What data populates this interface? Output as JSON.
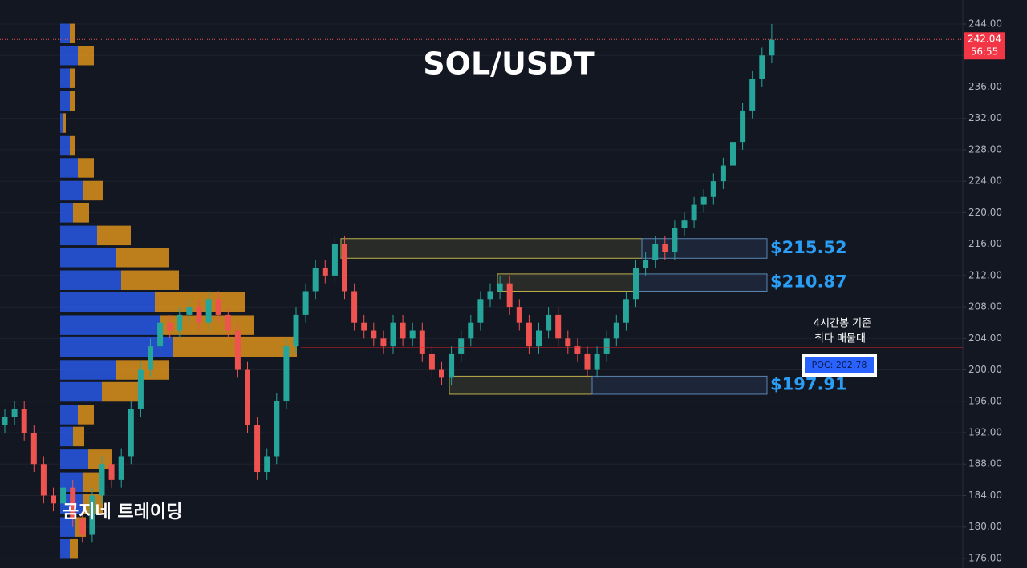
{
  "chart_data": {
    "type": "candlestick",
    "title": "SOL/USDT",
    "watermark": "곰지네 트레이딩",
    "open": [
      193,
      194,
      195,
      192,
      188,
      184,
      183,
      185,
      181,
      179,
      184,
      188,
      186,
      189,
      195,
      200,
      203,
      206,
      205,
      207,
      208,
      206,
      209,
      207,
      205,
      200,
      193,
      187,
      189,
      196,
      203,
      207,
      210,
      213,
      212,
      216,
      210,
      206,
      205,
      204,
      203,
      206,
      204,
      205,
      202,
      200,
      199,
      202,
      204,
      206,
      209,
      210,
      211,
      208,
      206,
      203,
      205,
      207,
      204,
      203,
      202,
      200,
      202,
      204,
      206,
      209,
      213,
      214,
      216,
      215,
      218,
      219,
      221,
      222,
      224,
      226,
      229,
      233,
      237,
      240
    ],
    "high": [
      195,
      196,
      196,
      193,
      189,
      185,
      186,
      186,
      182,
      185,
      189,
      189,
      190,
      196,
      201,
      204,
      207,
      207,
      208,
      209,
      209,
      210,
      210,
      208,
      206,
      201,
      194,
      190,
      197,
      204,
      208,
      211,
      214,
      214,
      217,
      217,
      211,
      207,
      206,
      205,
      207,
      207,
      206,
      206,
      203,
      201,
      203,
      205,
      207,
      210,
      211,
      212,
      212,
      209,
      207,
      206,
      208,
      208,
      205,
      204,
      203,
      203,
      205,
      207,
      210,
      214,
      215,
      217,
      217,
      219,
      220,
      222,
      223,
      225,
      227,
      230,
      234,
      238,
      241,
      244
    ],
    "low": [
      192,
      193,
      191,
      187,
      183,
      182,
      182,
      180,
      178,
      178,
      183,
      185,
      185,
      188,
      194,
      199,
      202,
      204,
      204,
      206,
      205,
      205,
      206,
      204,
      199,
      192,
      186,
      186,
      188,
      195,
      202,
      206,
      209,
      211,
      211,
      209,
      205,
      204,
      203,
      202,
      202,
      203,
      203,
      201,
      199,
      198,
      198,
      201,
      203,
      205,
      208,
      209,
      207,
      205,
      202,
      202,
      204,
      203,
      202,
      201,
      199,
      199,
      201,
      203,
      205,
      208,
      212,
      213,
      214,
      214,
      217,
      218,
      220,
      221,
      223,
      225,
      228,
      232,
      236,
      239
    ],
    "close": [
      194,
      195,
      192,
      188,
      184,
      183,
      185,
      181,
      179,
      184,
      188,
      186,
      189,
      195,
      200,
      203,
      206,
      205,
      207,
      208,
      206,
      209,
      207,
      205,
      200,
      193,
      187,
      189,
      196,
      203,
      207,
      210,
      213,
      212,
      216,
      210,
      206,
      205,
      204,
      203,
      206,
      204,
      205,
      202,
      200,
      199,
      202,
      204,
      206,
      209,
      210,
      211,
      208,
      206,
      203,
      205,
      207,
      204,
      203,
      202,
      200,
      202,
      204,
      206,
      209,
      213,
      214,
      216,
      215,
      218,
      219,
      221,
      222,
      224,
      226,
      229,
      233,
      237,
      240,
      242
    ],
    "up_color": "#26a69a",
    "down_color": "#ef5350",
    "ylim": [
      174.77,
      247.06
    ],
    "yticks": [
      {
        "value": 176,
        "label": "176.00"
      },
      {
        "value": 180,
        "label": "180.00"
      },
      {
        "value": 184,
        "label": "184.00"
      },
      {
        "value": 188,
        "label": "188.00"
      },
      {
        "value": 192,
        "label": "192.00"
      },
      {
        "value": 196,
        "label": "196.00"
      },
      {
        "value": 200,
        "label": "200.00"
      },
      {
        "value": 204,
        "label": "204.00"
      },
      {
        "value": 208,
        "label": "208.00"
      },
      {
        "value": 212,
        "label": "212.00"
      },
      {
        "value": 216,
        "label": "216.00"
      },
      {
        "value": 220,
        "label": "220.00"
      },
      {
        "value": 224,
        "label": "224.00"
      },
      {
        "value": 228,
        "label": "228.00"
      },
      {
        "value": 232,
        "label": "232.00"
      },
      {
        "value": 236,
        "label": "236.00"
      },
      {
        "value": 240,
        "label": "240.00"
      },
      {
        "value": 244,
        "label": "244.00"
      }
    ],
    "grid": true,
    "volume_profile": {
      "prices": [
        242.8,
        240.0,
        237.1,
        234.2,
        231.4,
        228.5,
        225.7,
        222.8,
        220.0,
        217.1,
        214.3,
        211.4,
        208.6,
        205.7,
        202.9,
        200.0,
        197.2,
        194.3,
        191.5,
        188.6,
        185.7,
        182.9,
        180.0,
        177.2
      ],
      "buy": [
        12,
        22,
        12,
        12,
        4,
        12,
        22,
        28,
        16,
        46,
        70,
        76,
        118,
        124,
        140,
        70,
        52,
        22,
        16,
        35,
        28,
        28,
        18,
        12
      ],
      "sell": [
        6,
        20,
        6,
        6,
        3,
        6,
        20,
        25,
        20,
        42,
        66,
        72,
        112,
        118,
        155,
        66,
        48,
        20,
        14,
        30,
        25,
        25,
        14,
        10
      ],
      "buy_color": "#2962ff",
      "sell_color": "#f7a21b"
    },
    "zones": [
      {
        "label": "$215.52",
        "low": 214.2,
        "high": 216.7
      },
      {
        "label": "$210.87",
        "low": 210.0,
        "high": 212.2
      },
      {
        "label": "$197.91",
        "low": 196.9,
        "high": 199.2
      }
    ],
    "poc": {
      "value": 202.78,
      "label": "POC: 202.78"
    },
    "annotation": [
      "4시간봉 기준",
      "최다 매물대"
    ],
    "last_price": {
      "value": 242.04,
      "label": "242.04"
    },
    "countdown": "56:55"
  }
}
